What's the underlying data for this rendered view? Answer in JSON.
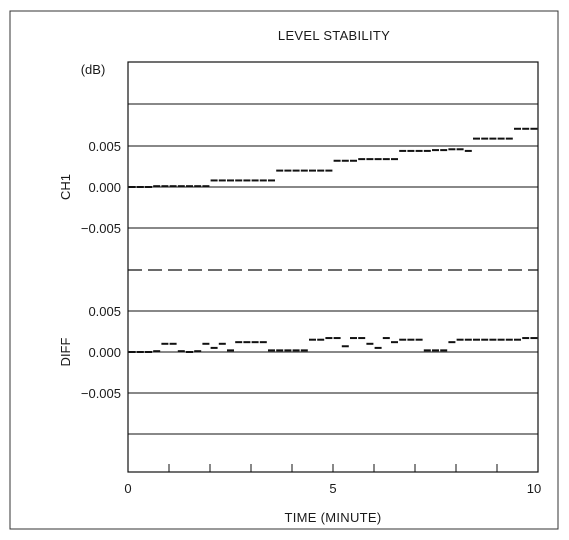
{
  "chart_data": {
    "type": "scatter",
    "title": "LEVEL STABILITY",
    "unit_label": "(dB)",
    "xlabel": "TIME (MINUTE)",
    "xlim": [
      0,
      10
    ],
    "x_ticks": [
      "0",
      "5",
      "10"
    ],
    "x_minor_ticks": [
      1,
      2,
      3,
      4,
      5,
      6,
      7,
      8,
      9
    ],
    "grid": true,
    "panels": [
      {
        "label": "CH1",
        "ylim": [
          -0.01,
          0.01
        ],
        "y_ticks": [
          {
            "value": 0.005,
            "label": "0.005"
          },
          {
            "value": 0.0,
            "label": "0.000"
          },
          {
            "value": -0.005,
            "label": "−0.005"
          }
        ],
        "x": [
          0.1,
          0.3,
          0.5,
          0.7,
          0.9,
          1.1,
          1.3,
          1.5,
          1.7,
          1.9,
          2.1,
          2.3,
          2.5,
          2.7,
          2.9,
          3.1,
          3.3,
          3.5,
          3.7,
          3.9,
          4.1,
          4.3,
          4.5,
          4.7,
          4.9,
          5.1,
          5.3,
          5.5,
          5.7,
          5.9,
          6.1,
          6.3,
          6.5,
          6.7,
          6.9,
          7.1,
          7.3,
          7.5,
          7.7,
          7.9,
          8.1,
          8.3,
          8.5,
          8.7,
          8.9,
          9.1,
          9.3,
          9.5,
          9.7,
          9.9
        ],
        "values": [
          0.0,
          0.0,
          0.0,
          0.0001,
          0.0001,
          0.0001,
          0.0001,
          0.0001,
          0.0001,
          0.0001,
          0.0008,
          0.0008,
          0.0008,
          0.0008,
          0.0008,
          0.0008,
          0.0008,
          0.0008,
          0.002,
          0.002,
          0.002,
          0.002,
          0.002,
          0.002,
          0.002,
          0.0032,
          0.0032,
          0.0032,
          0.0034,
          0.0034,
          0.0034,
          0.0034,
          0.0034,
          0.0044,
          0.0044,
          0.0044,
          0.0044,
          0.0045,
          0.0045,
          0.0046,
          0.0046,
          0.0044,
          0.0059,
          0.0059,
          0.0059,
          0.0059,
          0.0059,
          0.0071,
          0.0071,
          0.0071
        ]
      },
      {
        "label": "DIFF",
        "ylim": [
          -0.01,
          0.01
        ],
        "y_ticks": [
          {
            "value": 0.005,
            "label": "0.005"
          },
          {
            "value": 0.0,
            "label": "0.000"
          },
          {
            "value": -0.005,
            "label": "−0.005"
          }
        ],
        "x": [
          0.1,
          0.3,
          0.5,
          0.7,
          0.9,
          1.1,
          1.3,
          1.5,
          1.7,
          1.9,
          2.1,
          2.3,
          2.5,
          2.7,
          2.9,
          3.1,
          3.3,
          3.5,
          3.7,
          3.9,
          4.1,
          4.3,
          4.5,
          4.7,
          4.9,
          5.1,
          5.3,
          5.5,
          5.7,
          5.9,
          6.1,
          6.3,
          6.5,
          6.7,
          6.9,
          7.1,
          7.3,
          7.5,
          7.7,
          7.9,
          8.1,
          8.3,
          8.5,
          8.7,
          8.9,
          9.1,
          9.3,
          9.5,
          9.7,
          9.9
        ],
        "values": [
          0.0,
          0.0,
          0.0,
          0.0001,
          0.001,
          0.001,
          0.0001,
          0.0,
          0.0001,
          0.001,
          0.0005,
          0.001,
          0.0002,
          0.0012,
          0.0012,
          0.0012,
          0.0012,
          0.0002,
          0.0002,
          0.0002,
          0.0002,
          0.0002,
          0.0015,
          0.0015,
          0.0017,
          0.0017,
          0.0007,
          0.0017,
          0.0017,
          0.001,
          0.0005,
          0.0017,
          0.0012,
          0.0015,
          0.0015,
          0.0015,
          0.0002,
          0.0002,
          0.0002,
          0.0012,
          0.0015,
          0.0015,
          0.0015,
          0.0015,
          0.0015,
          0.0015,
          0.0015,
          0.0015,
          0.0017,
          0.0017
        ]
      }
    ]
  }
}
